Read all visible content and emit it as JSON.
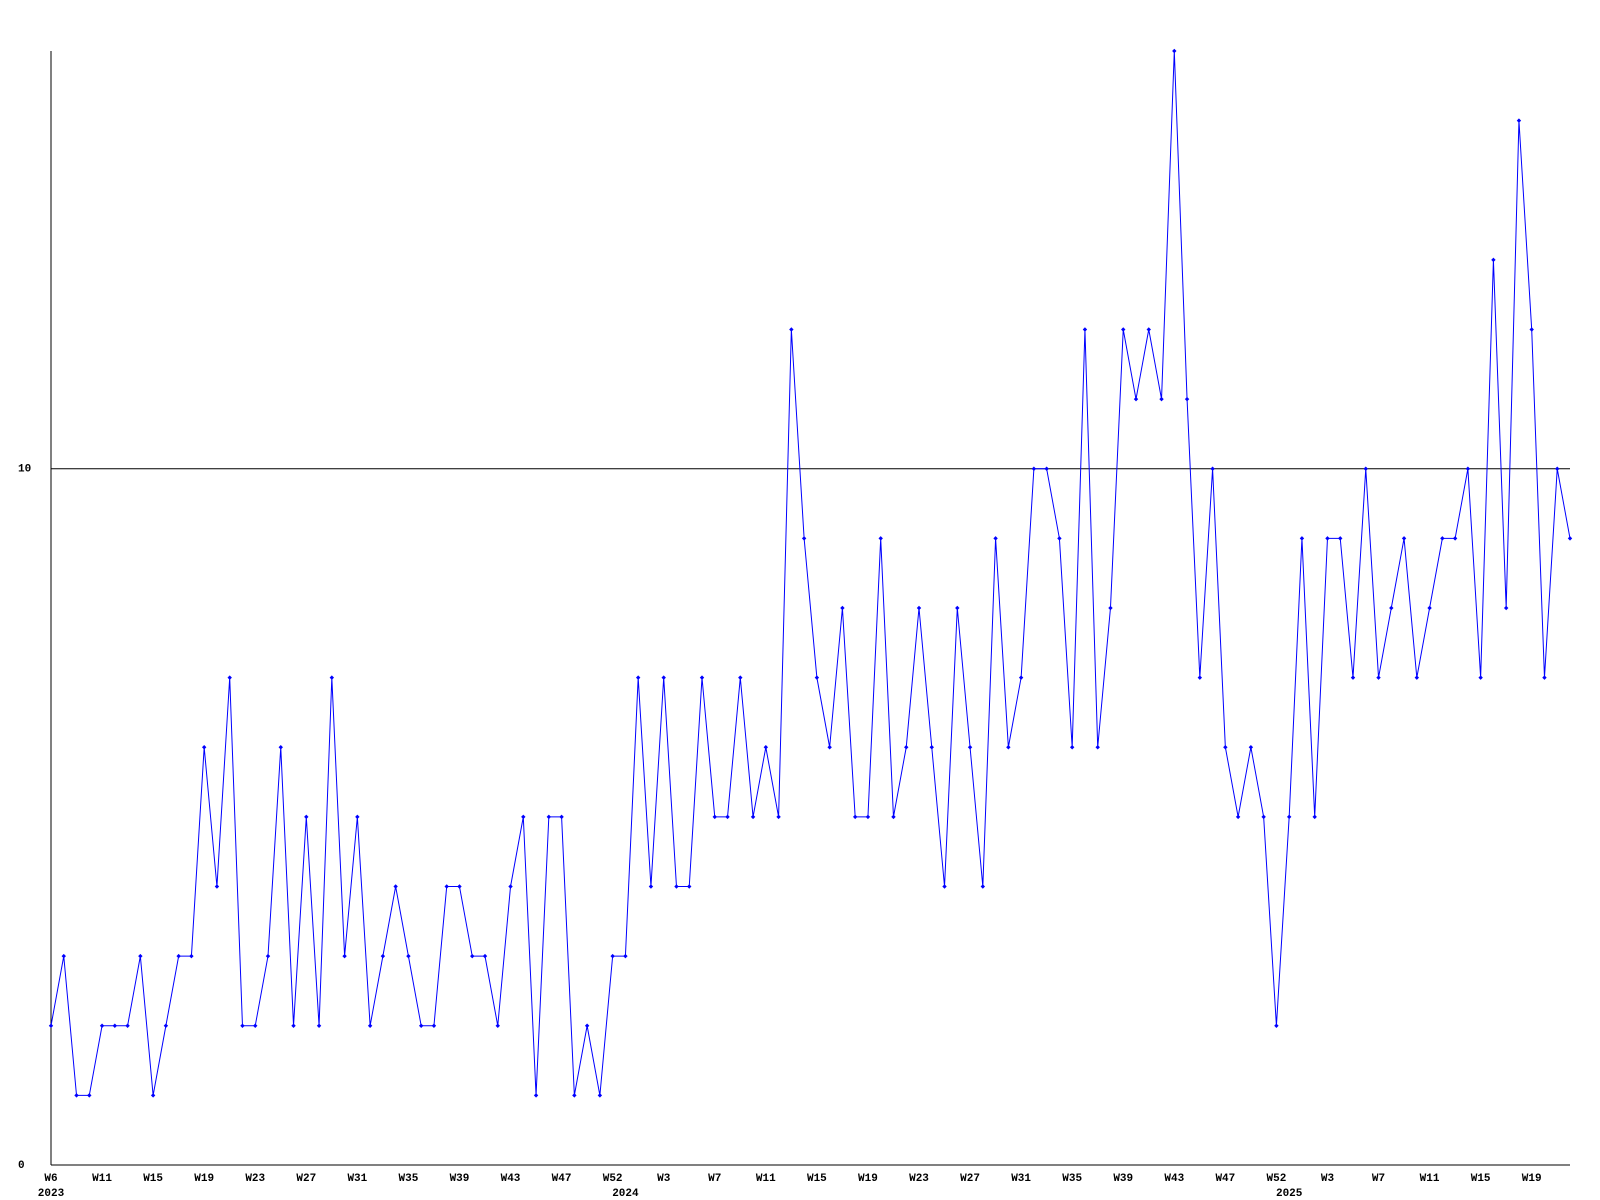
{
  "chart_data": {
    "type": "line",
    "categories": [
      "W6",
      null,
      null,
      null,
      "W11",
      null,
      null,
      null,
      "W15",
      null,
      null,
      null,
      "W19",
      null,
      null,
      null,
      "W23",
      null,
      null,
      null,
      "W27",
      null,
      null,
      null,
      "W31",
      null,
      null,
      null,
      "W35",
      null,
      null,
      null,
      "W39",
      null,
      null,
      null,
      "W43",
      null,
      null,
      null,
      "W47",
      null,
      null,
      null,
      "W52",
      null,
      null,
      null,
      "W3",
      null,
      null,
      null,
      "W7",
      null,
      null,
      null,
      "W11",
      null,
      null,
      null,
      "W15",
      null,
      null,
      null,
      "W19",
      null,
      null,
      null,
      "W23",
      null,
      null,
      null,
      "W27",
      null,
      null,
      null,
      "W31",
      null,
      null,
      null,
      "W35",
      null,
      null,
      null,
      "W39",
      null,
      null,
      null,
      "W43",
      null,
      null,
      null,
      "W47",
      null,
      null,
      null,
      "W52",
      null,
      null,
      null,
      "W3",
      null,
      null,
      null,
      "W7",
      null,
      null,
      null,
      "W11",
      null,
      null,
      null,
      "W15",
      null,
      null,
      null,
      "W19",
      null,
      null,
      null
    ],
    "category_years": [
      "2023",
      null,
      null,
      null,
      null,
      null,
      null,
      null,
      null,
      null,
      null,
      null,
      null,
      null,
      null,
      null,
      null,
      null,
      null,
      null,
      null,
      null,
      null,
      null,
      null,
      null,
      null,
      null,
      null,
      null,
      null,
      null,
      null,
      null,
      null,
      null,
      null,
      null,
      null,
      null,
      null,
      null,
      null,
      null,
      null,
      "2024",
      null,
      null,
      null,
      null,
      null,
      null,
      null,
      null,
      null,
      null,
      null,
      null,
      null,
      null,
      null,
      null,
      null,
      null,
      null,
      null,
      null,
      null,
      null,
      null,
      null,
      null,
      null,
      null,
      null,
      null,
      null,
      null,
      null,
      null,
      null,
      null,
      null,
      null,
      null,
      null,
      null,
      null,
      null,
      null,
      null,
      null,
      null,
      null,
      null,
      null,
      null,
      "2025",
      null,
      null,
      null,
      null,
      null,
      null,
      null,
      null,
      null,
      null,
      null,
      null,
      null,
      null,
      null,
      null,
      null,
      null,
      null,
      null,
      null,
      null
    ],
    "series": [
      {
        "color": "#0000ff",
        "values": [
          2,
          3,
          1,
          1,
          2,
          2,
          2,
          3,
          1,
          2,
          3,
          3,
          6,
          4,
          7,
          2,
          2,
          3,
          6,
          2,
          5,
          2,
          7,
          3,
          5,
          2,
          3,
          4,
          3,
          2,
          2,
          4,
          4,
          3,
          3,
          2,
          4,
          5,
          1,
          5,
          5,
          1,
          2,
          1,
          3,
          3,
          7,
          4,
          7,
          4,
          4,
          7,
          5,
          5,
          7,
          5,
          6,
          5,
          12,
          9,
          7,
          6,
          8,
          5,
          5,
          9,
          5,
          6,
          8,
          6,
          4,
          8,
          6,
          4,
          9,
          6,
          7,
          10,
          10,
          9,
          6,
          12,
          6,
          8,
          12,
          11,
          12,
          11,
          16,
          11,
          7,
          10,
          6,
          5,
          6,
          5,
          2,
          5,
          9,
          5,
          9,
          9,
          7,
          10,
          7,
          8,
          9,
          7,
          8,
          9,
          9,
          10,
          7,
          13,
          8,
          15,
          12,
          7,
          10,
          9
        ]
      }
    ],
    "ylim": [
      0,
      16
    ],
    "yticks": [
      0,
      10
    ],
    "grid": true
  }
}
